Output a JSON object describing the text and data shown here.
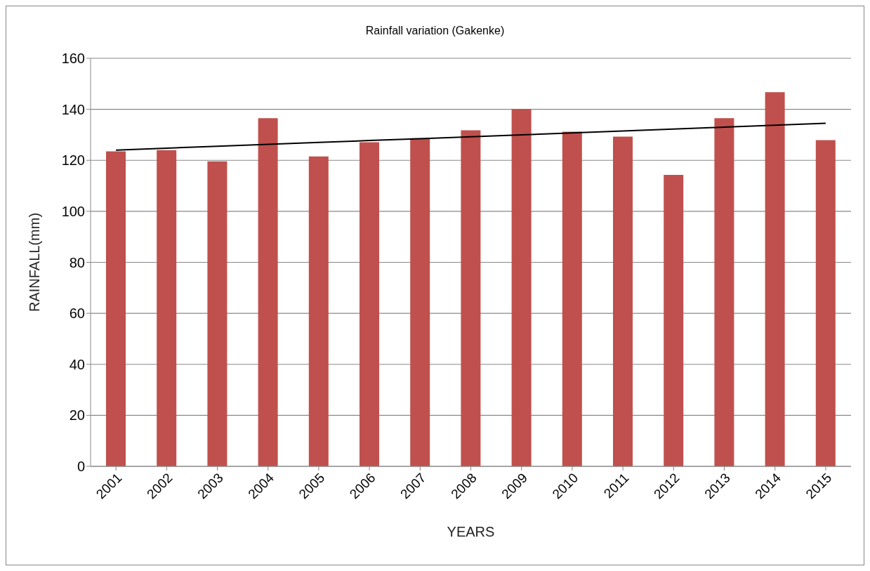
{
  "chart_data": {
    "type": "bar",
    "title": "Rainfall variation (Gakenke)",
    "xlabel": "YEARS",
    "ylabel": "RAINFALL(mm)",
    "categories": [
      "2001",
      "2002",
      "2003",
      "2004",
      "2005",
      "2006",
      "2007",
      "2008",
      "2009",
      "2010",
      "2011",
      "2012",
      "2013",
      "2014",
      "2015"
    ],
    "series": [
      {
        "color": "#c0504d",
        "values": [
          123.5,
          124,
          119.6,
          136.5,
          121.5,
          127.1,
          128.7,
          131.8,
          140.1,
          131.2,
          129.3,
          114.3,
          136.5,
          146.7,
          127.9
        ]
      },
      {
        "type": "line",
        "color": "#000000",
        "values": [
          124,
          124.75,
          125.5,
          126.25,
          127,
          127.75,
          128.5,
          129.25,
          130,
          130.75,
          131.5,
          132.25,
          133,
          133.75,
          134.5
        ]
      }
    ],
    "ylim": [
      0,
      160
    ],
    "yticks": [
      0,
      20,
      40,
      60,
      80,
      100,
      120,
      140,
      160
    ],
    "grid": "y",
    "legend": false
  }
}
